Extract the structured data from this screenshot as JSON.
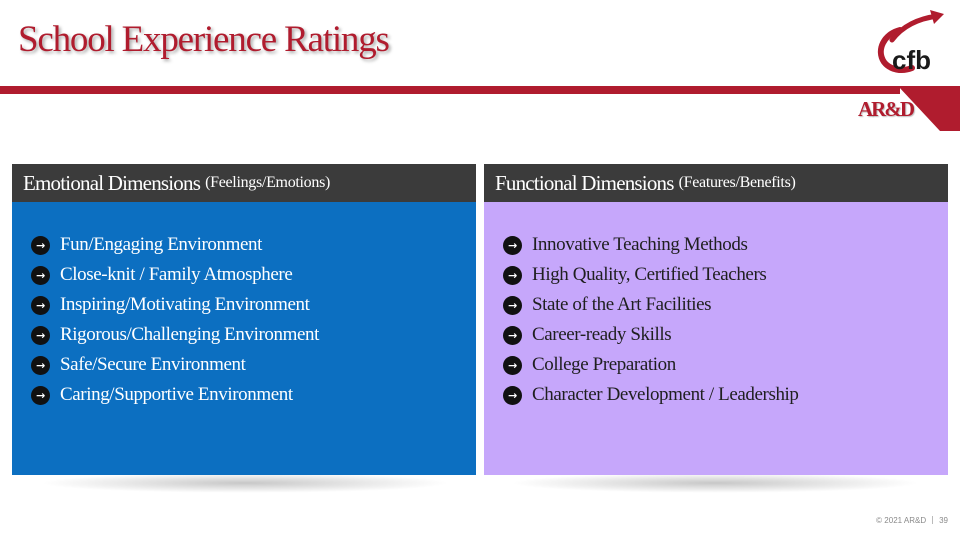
{
  "slide": {
    "title": "School Experience Ratings",
    "brand_tag": "AR&D",
    "logo_text": "cfb"
  },
  "colors": {
    "accent_red": "#b01c2e",
    "header_gray": "#3b3b3b",
    "emotional_blue": "#0c6fc1",
    "functional_purple": "#c6a7fb"
  },
  "panels": {
    "emotional": {
      "heading": "Emotional Dimensions",
      "subheading": "(Feelings/Emotions)",
      "items": [
        "Fun/Engaging Environment",
        "Close-knit / Family Atmosphere",
        "Inspiring/Motivating Environment",
        "Rigorous/Challenging Environment",
        "Safe/Secure Environment",
        "Caring/Supportive Environment"
      ]
    },
    "functional": {
      "heading": "Functional Dimensions",
      "subheading": "(Features/Benefits)",
      "items": [
        "Innovative Teaching Methods",
        "High Quality, Certified Teachers",
        "State of the Art Facilities",
        "Career-ready Skills",
        "College Preparation",
        "Character Development / Leadership"
      ]
    }
  },
  "bullet_icon": "arrow-right-icon",
  "footer": {
    "copyright": "© 2021 AR&D",
    "page_number": "39"
  }
}
